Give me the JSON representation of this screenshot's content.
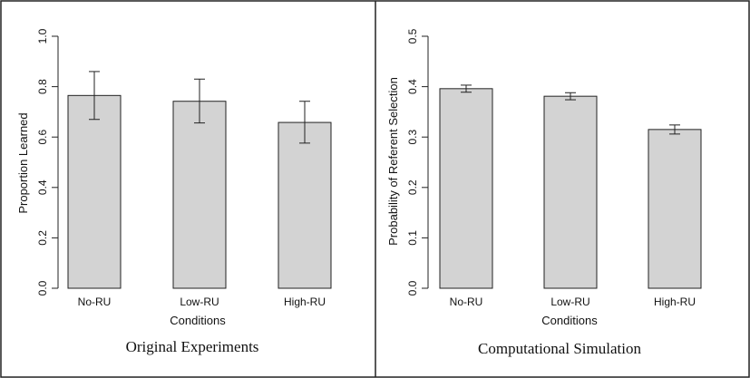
{
  "chart_data": [
    {
      "type": "bar",
      "panel_title": "Original Experiments",
      "categories": [
        "No-RU",
        "Low-RU",
        "High-RU"
      ],
      "values": [
        0.765,
        0.742,
        0.658
      ],
      "error_low": [
        0.67,
        0.656,
        0.576
      ],
      "error_high": [
        0.86,
        0.83,
        0.742
      ],
      "xlabel": "Conditions",
      "ylabel": "Proportion Learned",
      "ylim": [
        0,
        1.0
      ],
      "yticks": [
        "0.0",
        "0.2",
        "0.4",
        "0.6",
        "0.8",
        "1.0"
      ],
      "bar_color": "#d3d3d3",
      "grid": false
    },
    {
      "type": "bar",
      "panel_title": "Computational Simulation",
      "categories": [
        "No-RU",
        "Low-RU",
        "High-RU"
      ],
      "values": [
        0.396,
        0.381,
        0.315
      ],
      "error_low": [
        0.389,
        0.374,
        0.306
      ],
      "error_high": [
        0.403,
        0.388,
        0.324
      ],
      "xlabel": "Conditions",
      "ylabel": "Probability of Referent Selection",
      "ylim": [
        0,
        0.5
      ],
      "yticks": [
        "0.0",
        "0.1",
        "0.2",
        "0.3",
        "0.4",
        "0.5"
      ],
      "bar_color": "#d3d3d3",
      "grid": false
    }
  ]
}
